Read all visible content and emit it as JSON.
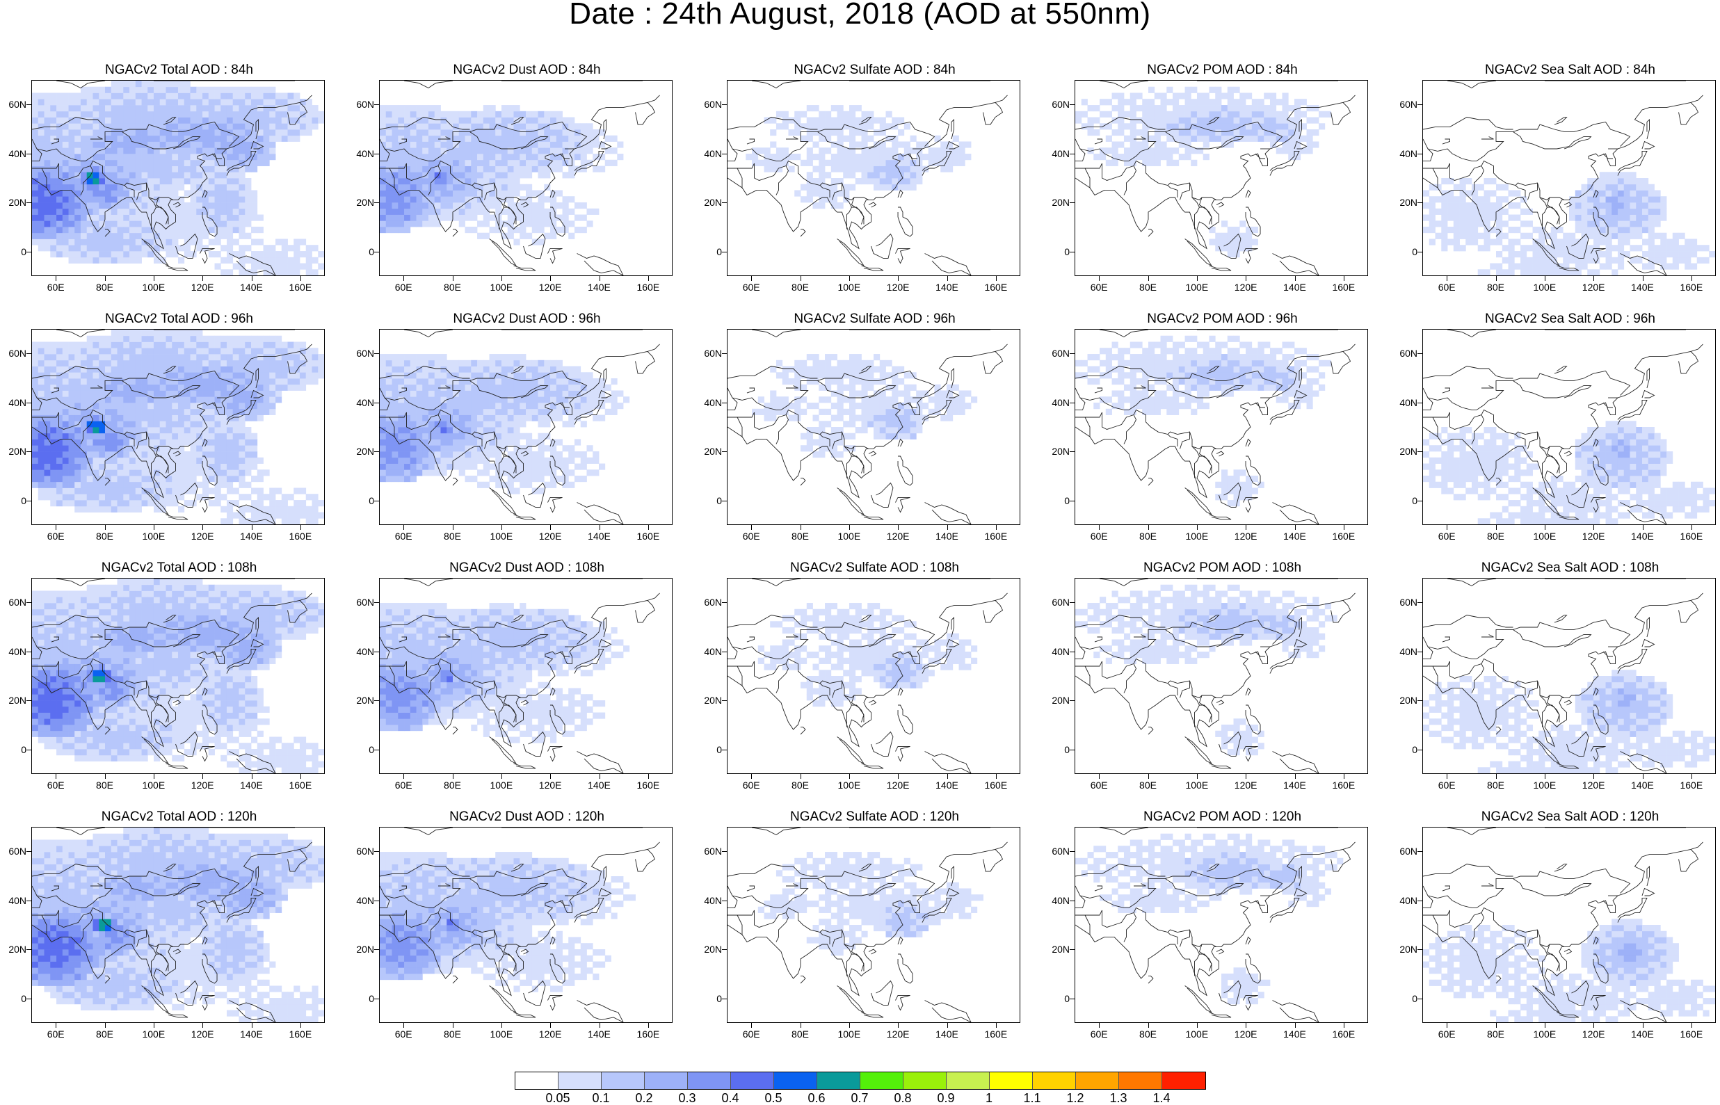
{
  "title": "Date : 24th August, 2018 (AOD at 550nm)",
  "map": {
    "lat_labels": [
      "60N",
      "40N",
      "20N",
      "0"
    ],
    "lon_labels": [
      "60E",
      "80E",
      "100E",
      "120E",
      "140E",
      "160E"
    ],
    "panels": [
      {
        "title": "NGACv2 Total AOD : 84h",
        "species": "total"
      },
      {
        "title": "NGACv2 Dust AOD : 84h",
        "species": "dust"
      },
      {
        "title": "NGACv2 Sulfate AOD : 84h",
        "species": "sulfate"
      },
      {
        "title": "NGACv2 POM AOD : 84h",
        "species": "pom"
      },
      {
        "title": "NGACv2 Sea Salt AOD : 84h",
        "species": "seasalt"
      },
      {
        "title": "NGACv2 Total AOD : 96h",
        "species": "total"
      },
      {
        "title": "NGACv2 Dust AOD : 96h",
        "species": "dust"
      },
      {
        "title": "NGACv2 Sulfate AOD : 96h",
        "species": "sulfate"
      },
      {
        "title": "NGACv2 POM AOD : 96h",
        "species": "pom"
      },
      {
        "title": "NGACv2 Sea Salt AOD : 96h",
        "species": "seasalt"
      },
      {
        "title": "NGACv2 Total AOD : 108h",
        "species": "total"
      },
      {
        "title": "NGACv2 Dust AOD : 108h",
        "species": "dust"
      },
      {
        "title": "NGACv2 Sulfate AOD : 108h",
        "species": "sulfate"
      },
      {
        "title": "NGACv2 POM AOD : 108h",
        "species": "pom"
      },
      {
        "title": "NGACv2 Sea Salt AOD : 108h",
        "species": "seasalt"
      },
      {
        "title": "NGACv2 Total AOD : 120h",
        "species": "total"
      },
      {
        "title": "NGACv2 Dust AOD : 120h",
        "species": "dust"
      },
      {
        "title": "NGACv2 Sulfate AOD : 120h",
        "species": "sulfate"
      },
      {
        "title": "NGACv2 POM AOD : 120h",
        "species": "pom"
      },
      {
        "title": "NGACv2 Sea Salt  AOD : 120h",
        "species": "seasalt"
      }
    ]
  },
  "colorbar": {
    "labels": [
      "0.05",
      "0.1",
      "0.2",
      "0.3",
      "0.4",
      "0.5",
      "0.6",
      "0.7",
      "0.8",
      "0.9",
      "1",
      "1.1",
      "1.2",
      "1.3",
      "1.4"
    ],
    "colors": [
      "#ffffff",
      "#d6dffc",
      "#b7c7fb",
      "#9db1f8",
      "#7f95f4",
      "#5b6ef0",
      "#0a62f0",
      "#0a9a9a",
      "#54f00a",
      "#9af00a",
      "#c8f050",
      "#ffff00",
      "#ffd200",
      "#ffa500",
      "#ff7800",
      "#ff2000"
    ]
  }
}
